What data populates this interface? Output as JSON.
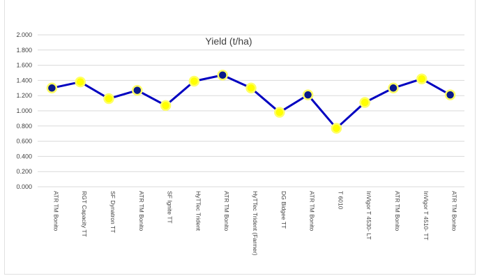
{
  "chart_data": {
    "type": "line",
    "title": "Yield (t/ha)",
    "xlabel": "",
    "ylabel": "",
    "ylim": [
      0,
      2
    ],
    "yticks": [
      "0.000",
      "0.200",
      "0.400",
      "0.600",
      "0.800",
      "1.000",
      "1.200",
      "1.400",
      "1.600",
      "1.800",
      "2.000"
    ],
    "grid": true,
    "legend": "none",
    "categories": [
      "ATR TM Bonito",
      "RGT Capacity TT",
      "SF Dynatron TT",
      "ATR TM Bonito",
      "SF Ignite TT",
      "HyTTec Trident",
      "ATR TM Bonito",
      "HyTTec Trident (Farmer)",
      "DG Bidgee TT",
      "ATR TM Bonito",
      "T 6010",
      "InVigor T 4530- LT",
      "ATR TM Bonito",
      "InVigor T 4510- TT",
      "ATR TM Bonito"
    ],
    "values": [
      1.3,
      1.38,
      1.16,
      1.27,
      1.07,
      1.39,
      1.47,
      1.3,
      0.98,
      1.21,
      0.77,
      1.11,
      1.3,
      1.42,
      1.21
    ],
    "highlight_category": "ATR TM Bonito",
    "colors": {
      "line": "#0000c0",
      "highlight_fill": "#0a1a8c",
      "marker_fill": "#ffff00",
      "marker_edge": "#ffff66",
      "grid": "#d9d9d9"
    }
  }
}
